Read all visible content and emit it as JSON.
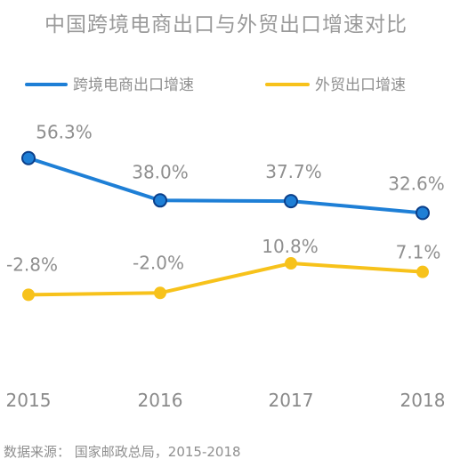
{
  "chart_data": {
    "type": "line",
    "title": "中国跨境电商出口与外贸出口增速对比",
    "categories": [
      "2015",
      "2016",
      "2017",
      "2018"
    ],
    "series": [
      {
        "name": "跨境电商出口增速",
        "color": "#1e7fd6",
        "values": [
          56.3,
          38.0,
          37.7,
          32.6
        ],
        "labels": [
          "56.3%",
          "38.0%",
          "37.7%",
          "32.6%"
        ]
      },
      {
        "name": "外贸出口增速",
        "color": "#f7c21b",
        "values": [
          -2.8,
          -2.0,
          10.8,
          7.1
        ],
        "labels": [
          "-2.8%",
          "-2.0%",
          "10.8%",
          "7.1%"
        ]
      }
    ],
    "legend_position": "top",
    "grid": false,
    "source": "数据来源： 国家邮政总局，2015-2018"
  }
}
